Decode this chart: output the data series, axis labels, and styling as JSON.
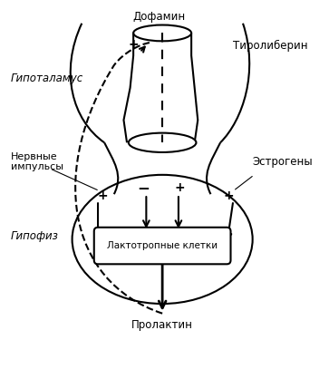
{
  "title": "",
  "bg_color": "#ffffff",
  "labels": {
    "dopamin": "Дофамин",
    "tyroliberin": "Тиролиберин",
    "hypothalamus": "Гипоталамус",
    "nerve_impulses": "Нервные\nимпульсы",
    "estrogens": "Эстрогены",
    "hypophysis": "Гипофиз",
    "lactotroph": "Лактотропные клетки",
    "prolactin": "Пролактин",
    "plus1": "+",
    "minus1": "−",
    "plus2": "+",
    "plus3": "+"
  },
  "line_color": "#000000",
  "text_color": "#000000",
  "figsize": [
    3.63,
    4.07
  ],
  "dpi": 100
}
